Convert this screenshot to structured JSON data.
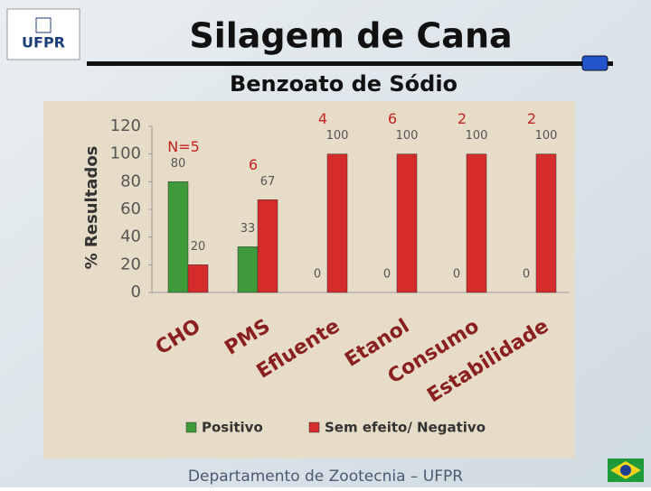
{
  "slide": {
    "logo": "UFPR",
    "title": "Silagem de Cana",
    "subtitle": "Benzoato de Sódio",
    "footer": "Departamento de Zootecnia – UFPR"
  },
  "chart_data": {
    "type": "bar",
    "y_label": "% Resultados",
    "categories": [
      "CHO",
      "PMS",
      "Efluente",
      "Etanol",
      "Consumo",
      "Estabilidade"
    ],
    "annotations": [
      "N=5",
      "6",
      "4",
      "6",
      "2",
      "2"
    ],
    "series": [
      {
        "name": "Positivo",
        "color": "#3f9a3a",
        "values": [
          80,
          33,
          0,
          0,
          0,
          0
        ]
      },
      {
        "name": "Sem efeito/ Negativo",
        "color": "#d42b2b",
        "values": [
          20,
          67,
          100,
          100,
          100,
          100
        ]
      }
    ],
    "ylim": [
      0,
      120
    ],
    "yticks": [
      0,
      20,
      40,
      60,
      80,
      100,
      120
    ]
  }
}
